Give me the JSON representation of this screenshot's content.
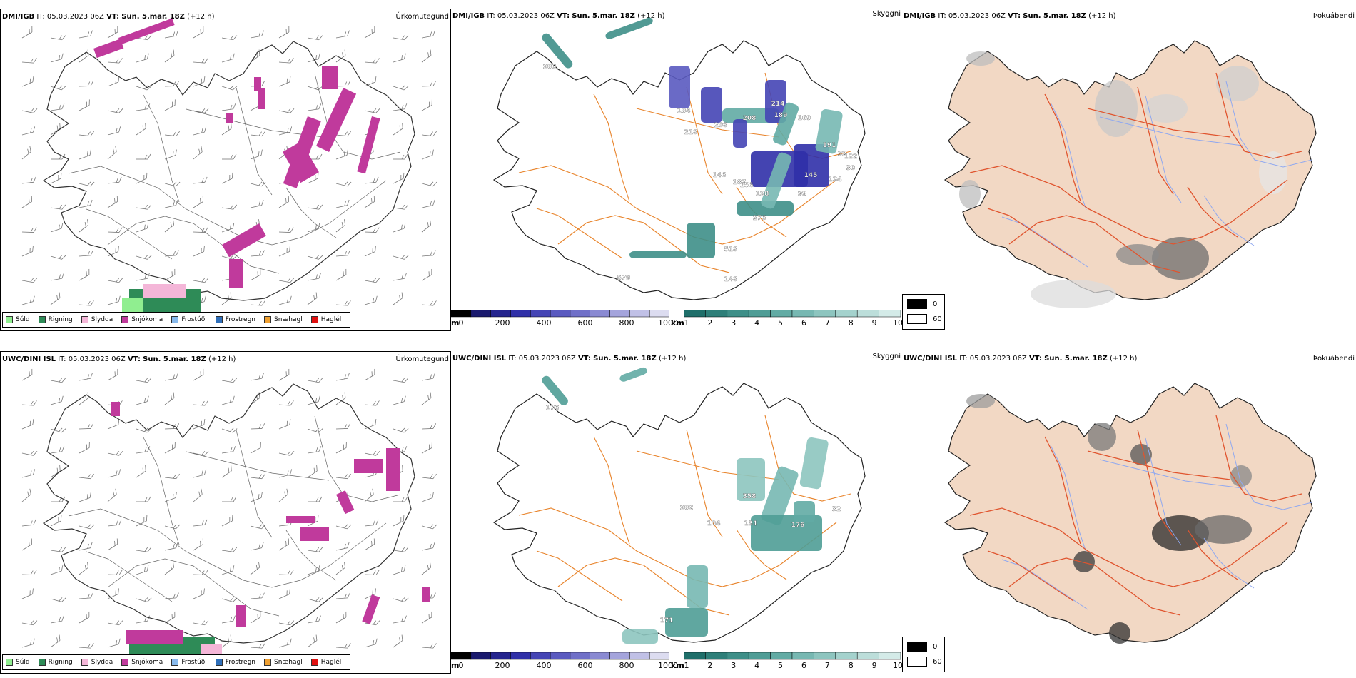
{
  "rows": [
    {
      "model": "DMI/IGB",
      "it_label": "IT:",
      "it_value": "05.03.2023 06Z",
      "vt_label": "VT:",
      "vt_value": "Sun. 5.mar. 18Z",
      "lead": "(+12 h)",
      "precip_title": "Úrkomutegund",
      "vis_title": "Skyggni",
      "fog_title": "Þokuábendi",
      "vis_labels": [
        "200",
        "104",
        "218",
        "208",
        "208",
        "214",
        "189",
        "169",
        "191",
        "32",
        "30",
        "122",
        "146",
        "156",
        "187",
        "128",
        "99",
        "145",
        "134",
        "276",
        "518",
        "579",
        "148"
      ]
    },
    {
      "model": "UWC/DINI ISL",
      "it_label": "IT:",
      "it_value": "05.03.2023 06Z",
      "vt_label": "VT:",
      "vt_value": "Sun. 5.mar. 18Z",
      "lead": "(+12 h)",
      "precip_title": "Úrkomutegund",
      "vis_title": "Skyggni",
      "fog_title": "Þokuábendi",
      "vis_labels": [
        "176",
        "202",
        "104",
        "131",
        "176",
        "358",
        "32",
        "171"
      ]
    }
  ],
  "precip_legend": [
    {
      "label": "Súld",
      "color": "#90ee90"
    },
    {
      "label": "Rigning",
      "color": "#2e8b57"
    },
    {
      "label": "Slydda",
      "color": "#f4b6d8"
    },
    {
      "label": "Snjókoma",
      "color": "#c03a9c"
    },
    {
      "label": "Frostúði",
      "color": "#87b9ec"
    },
    {
      "label": "Frostregn",
      "color": "#2f6fba"
    },
    {
      "label": "Snæhagl",
      "color": "#f0a030"
    },
    {
      "label": "Haglél",
      "color": "#e01010"
    }
  ],
  "vis_scale_m": {
    "unit": "m",
    "ticks": [
      "0",
      "200",
      "400",
      "600",
      "800",
      "1000"
    ],
    "colors": [
      "#000000",
      "#1a1a6e",
      "#24248e",
      "#3030a8",
      "#4545b5",
      "#5a5ac0",
      "#7070c8",
      "#8a8ad2",
      "#a4a4dc",
      "#c0c0e6",
      "#dcdcf0"
    ]
  },
  "vis_scale_km": {
    "unit": "km",
    "ticks": [
      "1",
      "2",
      "3",
      "4",
      "5",
      "6",
      "7",
      "8",
      "9",
      "10"
    ],
    "colors": [
      "#1f6f6a",
      "#2e7f79",
      "#3e8f88",
      "#4f9d96",
      "#62aba4",
      "#77b8b2",
      "#8dc5bf",
      "#a4d2cd",
      "#bcdeda",
      "#d4ebe8"
    ]
  },
  "fog_legend": [
    {
      "value": "0",
      "color": "#000000"
    },
    {
      "value": "60",
      "color": "#ffffff"
    }
  ]
}
